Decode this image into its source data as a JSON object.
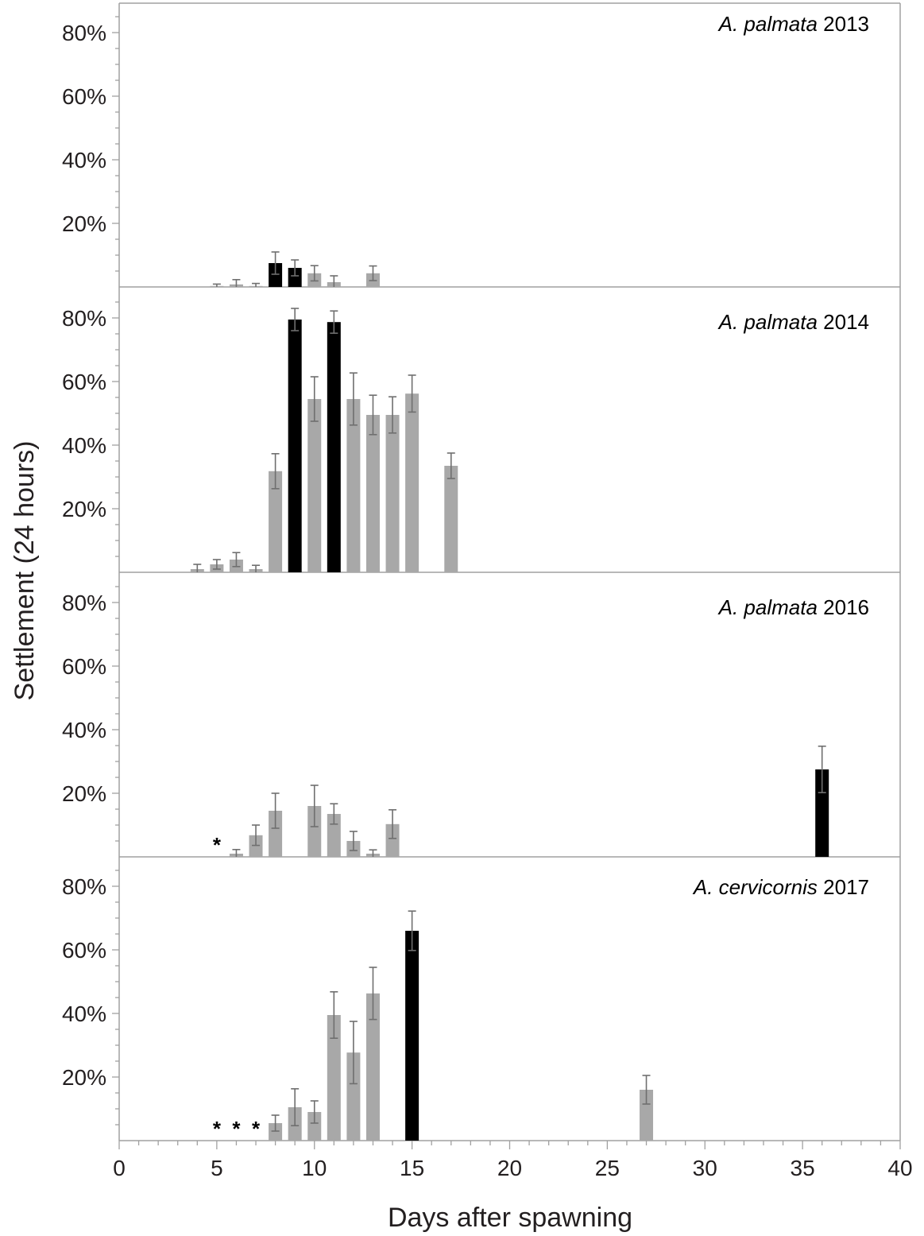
{
  "colors": {
    "normal_bar": "#a8a8a8",
    "peak_bar": "#000000",
    "error_bar": "#6f6f6f",
    "axis": "#a0a0a0",
    "text": "#231f20"
  },
  "chart_data": {
    "type": "bar",
    "ylabel": "Settlement (24 hours)",
    "xlabel": "Days after spawning",
    "xlim": [
      0,
      40
    ],
    "x_ticks": [
      "0",
      "5",
      "10",
      "15",
      "20",
      "25",
      "30",
      "35",
      "40"
    ],
    "ylim": [
      0,
      90
    ],
    "y_tick_labels": [
      "20%",
      "40%",
      "60%",
      "80%"
    ],
    "legend": "none",
    "grid": false,
    "error_bars": true,
    "panels": [
      {
        "title_italic": "A. palmata",
        "title_year": "2013",
        "bars": [
          {
            "x": 5,
            "y": 0.3,
            "err": 0.6,
            "peak": false
          },
          {
            "x": 6,
            "y": 0.8,
            "err": 1.5,
            "peak": false
          },
          {
            "x": 7,
            "y": 0.3,
            "err": 0.8,
            "peak": false
          },
          {
            "x": 8,
            "y": 7.5,
            "err": 3.5,
            "peak": true
          },
          {
            "x": 9,
            "y": 6.0,
            "err": 2.5,
            "peak": true
          },
          {
            "x": 10,
            "y": 4.3,
            "err": 2.4,
            "peak": false
          },
          {
            "x": 11,
            "y": 1.5,
            "err": 2.0,
            "peak": false
          },
          {
            "x": 13,
            "y": 4.3,
            "err": 2.3,
            "peak": false
          }
        ],
        "stars": []
      },
      {
        "title_italic": "A. palmata",
        "title_year": "2014",
        "bars": [
          {
            "x": 4,
            "y": 1.0,
            "err": 1.5,
            "peak": false
          },
          {
            "x": 5,
            "y": 2.5,
            "err": 1.5,
            "peak": false
          },
          {
            "x": 6,
            "y": 4.0,
            "err": 2.2,
            "peak": false
          },
          {
            "x": 7,
            "y": 1.0,
            "err": 1.2,
            "peak": false
          },
          {
            "x": 8,
            "y": 31.8,
            "err": 5.5,
            "peak": false
          },
          {
            "x": 9,
            "y": 79.5,
            "err": 3.5,
            "peak": true
          },
          {
            "x": 10,
            "y": 54.5,
            "err": 7.0,
            "peak": false
          },
          {
            "x": 11,
            "y": 78.7,
            "err": 3.5,
            "peak": true
          },
          {
            "x": 12,
            "y": 54.5,
            "err": 8.2,
            "peak": false
          },
          {
            "x": 13,
            "y": 49.5,
            "err": 6.2,
            "peak": false
          },
          {
            "x": 14,
            "y": 49.5,
            "err": 5.7,
            "peak": false
          },
          {
            "x": 15,
            "y": 56.2,
            "err": 5.8,
            "peak": false
          },
          {
            "x": 17,
            "y": 33.5,
            "err": 4.0,
            "peak": false
          }
        ],
        "stars": []
      },
      {
        "title_italic": "A. palmata",
        "title_year": "2016",
        "bars": [
          {
            "x": 6,
            "y": 1.0,
            "err": 1.3,
            "peak": false
          },
          {
            "x": 7,
            "y": 6.8,
            "err": 3.2,
            "peak": false
          },
          {
            "x": 8,
            "y": 14.5,
            "err": 5.5,
            "peak": false
          },
          {
            "x": 10,
            "y": 16.0,
            "err": 6.5,
            "peak": false
          },
          {
            "x": 11,
            "y": 13.5,
            "err": 3.2,
            "peak": false
          },
          {
            "x": 12,
            "y": 5.0,
            "err": 3.0,
            "peak": false
          },
          {
            "x": 13,
            "y": 1.0,
            "err": 1.2,
            "peak": false
          },
          {
            "x": 14,
            "y": 10.3,
            "err": 4.5,
            "peak": false
          },
          {
            "x": 36,
            "y": 27.5,
            "err": 7.3,
            "peak": true
          }
        ],
        "stars": [
          5
        ]
      },
      {
        "title_italic": "A. cervicornis",
        "title_year": "2017",
        "bars": [
          {
            "x": 8,
            "y": 5.5,
            "err": 2.5,
            "peak": false
          },
          {
            "x": 9,
            "y": 10.5,
            "err": 5.8,
            "peak": false
          },
          {
            "x": 10,
            "y": 9.0,
            "err": 3.5,
            "peak": false
          },
          {
            "x": 11,
            "y": 39.5,
            "err": 7.3,
            "peak": false
          },
          {
            "x": 12,
            "y": 27.7,
            "err": 9.8,
            "peak": false
          },
          {
            "x": 13,
            "y": 46.3,
            "err": 8.2,
            "peak": false
          },
          {
            "x": 15,
            "y": 66.0,
            "err": 6.2,
            "peak": true
          },
          {
            "x": 27,
            "y": 16.0,
            "err": 4.5,
            "peak": false
          }
        ],
        "stars": [
          5,
          6,
          7
        ]
      }
    ]
  }
}
